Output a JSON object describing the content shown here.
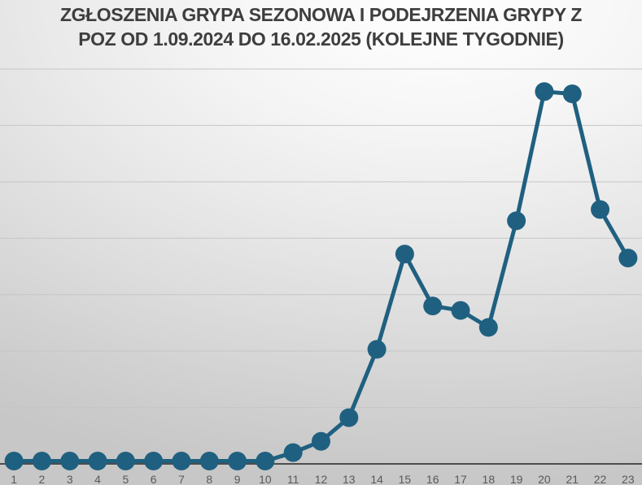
{
  "title": {
    "line1": "ZGŁOSZENIA GRYPA SEZONOWA I PODEJRZENIA GRYPY Z",
    "line2": "POZ OD 1.09.2024 DO 16.02.2025 (KOLEJNE TYGODNIE)"
  },
  "chart_data": {
    "type": "line",
    "title": "ZGŁOSZENIA GRYPA SEZONOWA I PODEJRZENIA GRYPY Z POZ OD 1.09.2024 DO 16.02.2025 (KOLEJNE TYGODNIE)",
    "categories": [
      "1",
      "2",
      "3",
      "4",
      "5",
      "6",
      "7",
      "8",
      "9",
      "10",
      "11",
      "12",
      "13",
      "14",
      "15",
      "16",
      "17",
      "18",
      "19",
      "20",
      "21",
      "22",
      "23"
    ],
    "values": [
      0.05,
      0.05,
      0.05,
      0.05,
      0.05,
      0.05,
      0.05,
      0.05,
      0.05,
      0.05,
      0.2,
      0.4,
      0.82,
      2.03,
      3.72,
      2.8,
      2.72,
      2.42,
      4.31,
      6.6,
      6.56,
      4.51,
      3.65
    ],
    "xlabel": "",
    "ylabel": "",
    "y_axis_tick_labels": "none",
    "ylim": [
      0,
      7
    ],
    "gridlines": {
      "horizontal": 7,
      "vertical": 0
    },
    "legend": "none",
    "marker": "filled-circle",
    "colors": {
      "line": "#1f6080",
      "marker": "#1f6080",
      "gridline": "#c6c6c6",
      "axis": "#4d4d4d",
      "tick_label": "#595959",
      "title": "#3e3e3e"
    }
  }
}
